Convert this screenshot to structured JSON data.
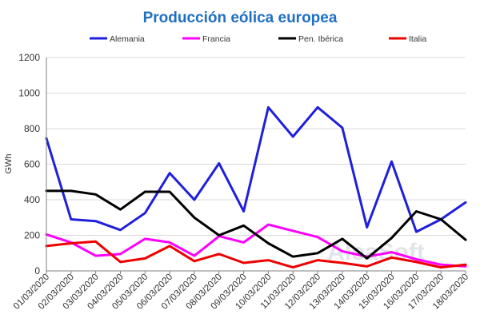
{
  "chart_data": {
    "type": "line",
    "title": "Producción eólica europea",
    "ylabel": "GWh",
    "xlabel": "",
    "ylim": [
      0,
      1200
    ],
    "yticks": [
      0,
      200,
      400,
      600,
      800,
      1000,
      1200
    ],
    "yticks_labels": [
      "0",
      "200",
      "400",
      "600",
      "800",
      "1000",
      "1200"
    ],
    "grid": true,
    "legend_position": "top",
    "categories": [
      "01/03/2020",
      "02/03/2020",
      "03/03/2020",
      "04/03/2020",
      "05/03/2020",
      "06/03/2020",
      "07/03/2020",
      "08/03/2020",
      "09/03/2020",
      "10/03/2020",
      "11/03/2020",
      "12/03/2020",
      "13/03/2020",
      "14/03/2020",
      "15/03/2020",
      "16/03/2020",
      "17/03/2020",
      "18/03/2020"
    ],
    "series": [
      {
        "name": "Alemania",
        "color": "#1f1fdc",
        "values": [
          745,
          290,
          280,
          230,
          325,
          550,
          400,
          605,
          335,
          920,
          755,
          920,
          805,
          245,
          615,
          220,
          290,
          385
        ]
      },
      {
        "name": "Francia",
        "color": "#ff00ff",
        "values": [
          205,
          160,
          85,
          95,
          180,
          160,
          85,
          195,
          160,
          260,
          225,
          190,
          110,
          80,
          105,
          65,
          35,
          25
        ]
      },
      {
        "name": "Pen. Ibérica",
        "color": "#000000",
        "values": [
          450,
          450,
          430,
          345,
          445,
          445,
          300,
          200,
          255,
          155,
          80,
          100,
          180,
          70,
          185,
          335,
          290,
          175
        ]
      },
      {
        "name": "Italia",
        "color": "#ee0000",
        "values": [
          140,
          155,
          165,
          50,
          70,
          140,
          55,
          95,
          45,
          60,
          20,
          60,
          45,
          25,
          75,
          50,
          20,
          35
        ]
      }
    ],
    "watermark": "AleaSoft"
  }
}
